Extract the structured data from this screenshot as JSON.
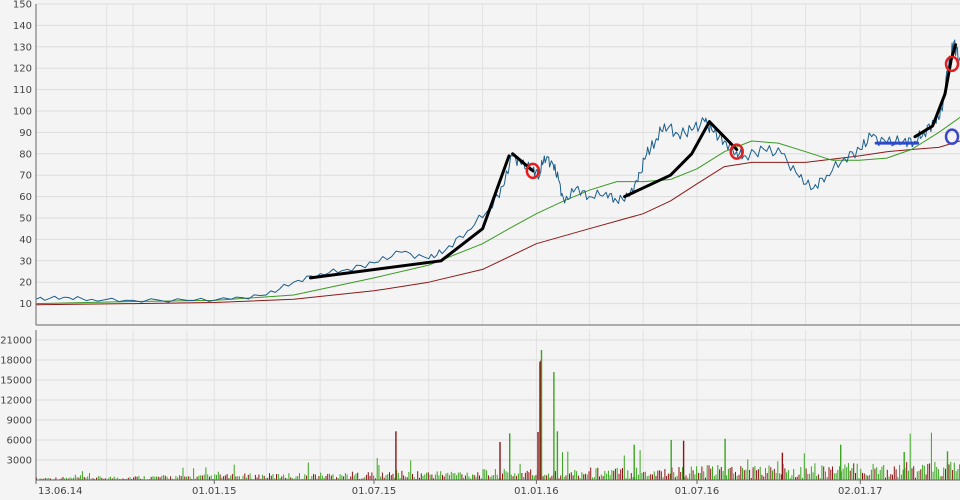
{
  "chart_data": [
    {
      "type": "line",
      "title": "",
      "xlabel": "",
      "ylabel": "",
      "ylim": [
        0,
        150
      ],
      "y_ticks": [
        "10",
        "20",
        "30",
        "40",
        "50",
        "60",
        "70",
        "80",
        "90",
        "100",
        "110",
        "120",
        "130",
        "140",
        "150"
      ],
      "x_tick_labels": [
        "13.06.14",
        "01.01.15",
        "01.07.15",
        "01.01.16",
        "01.07.16",
        "02.01.17"
      ],
      "x_tick_dates": [
        "2014-06-13",
        "2015-01-01",
        "2015-07-01",
        "2016-01-01",
        "2016-07-01",
        "2017-01-02"
      ],
      "x_range": [
        "2014-06-13",
        "2017-04-25"
      ],
      "grid": true,
      "series": [
        {
          "color": "#1b5e8c",
          "role": "price",
          "points": [
            [
              "2014-06-13",
              12
            ],
            [
              "2014-07-15",
              13
            ],
            [
              "2014-08-15",
              12
            ],
            [
              "2014-10-01",
              11.5
            ],
            [
              "2014-12-01",
              11.5
            ],
            [
              "2015-01-20",
              12
            ],
            [
              "2015-03-01",
              14
            ],
            [
              "2015-04-01",
              20
            ],
            [
              "2015-05-01",
              24
            ],
            [
              "2015-06-01",
              26
            ],
            [
              "2015-07-01",
              29
            ],
            [
              "2015-08-01",
              34
            ],
            [
              "2015-09-01",
              31
            ],
            [
              "2015-09-20",
              35
            ],
            [
              "2015-10-15",
              44
            ],
            [
              "2015-11-10",
              55
            ],
            [
              "2015-11-25",
              65
            ],
            [
              "2015-12-05",
              79
            ],
            [
              "2015-12-15",
              75
            ],
            [
              "2015-12-28",
              73
            ],
            [
              "2016-01-05",
              70
            ],
            [
              "2016-01-10",
              79
            ],
            [
              "2016-01-20",
              75
            ],
            [
              "2016-01-26",
              68
            ],
            [
              "2016-02-02",
              57
            ],
            [
              "2016-02-15",
              64
            ],
            [
              "2016-03-01",
              60
            ],
            [
              "2016-03-20",
              62
            ],
            [
              "2016-04-01",
              58
            ],
            [
              "2016-04-15",
              60
            ],
            [
              "2016-04-25",
              67
            ],
            [
              "2016-05-05",
              80
            ],
            [
              "2016-05-15",
              86
            ],
            [
              "2016-05-25",
              94
            ],
            [
              "2016-06-10",
              89
            ],
            [
              "2016-06-25",
              91
            ],
            [
              "2016-07-10",
              95
            ],
            [
              "2016-07-20",
              90
            ],
            [
              "2016-08-01",
              86
            ],
            [
              "2016-08-15",
              81
            ],
            [
              "2016-08-25",
              79
            ],
            [
              "2016-09-15",
              82
            ],
            [
              "2016-10-05",
              80
            ],
            [
              "2016-10-25",
              69
            ],
            [
              "2016-11-10",
              64
            ],
            [
              "2016-11-25",
              70
            ],
            [
              "2016-12-15",
              78
            ],
            [
              "2017-01-02",
              82
            ],
            [
              "2017-01-15",
              88
            ],
            [
              "2017-02-01",
              85
            ],
            [
              "2017-02-20",
              86
            ],
            [
              "2017-03-05",
              86
            ],
            [
              "2017-03-15",
              90
            ],
            [
              "2017-03-28",
              95
            ],
            [
              "2017-04-05",
              100
            ],
            [
              "2017-04-12",
              120
            ],
            [
              "2017-04-18",
              132
            ],
            [
              "2017-04-25",
              125
            ]
          ]
        },
        {
          "color": "#3a9a24",
          "role": "moving-average-short",
          "points": [
            [
              "2014-06-13",
              10
            ],
            [
              "2014-10-01",
              11
            ],
            [
              "2015-01-01",
              11.5
            ],
            [
              "2015-04-01",
              14
            ],
            [
              "2015-07-01",
              22
            ],
            [
              "2015-09-01",
              28
            ],
            [
              "2015-11-01",
              38
            ],
            [
              "2015-12-01",
              45
            ],
            [
              "2016-01-01",
              52
            ],
            [
              "2016-02-01",
              58
            ],
            [
              "2016-03-01",
              63
            ],
            [
              "2016-04-01",
              67
            ],
            [
              "2016-05-01",
              67
            ],
            [
              "2016-06-01",
              68
            ],
            [
              "2016-07-01",
              73
            ],
            [
              "2016-08-01",
              81
            ],
            [
              "2016-09-01",
              86
            ],
            [
              "2016-10-01",
              85
            ],
            [
              "2016-11-01",
              81
            ],
            [
              "2016-12-01",
              77
            ],
            [
              "2017-01-01",
              77
            ],
            [
              "2017-02-01",
              78
            ],
            [
              "2017-03-01",
              82
            ],
            [
              "2017-04-01",
              90
            ],
            [
              "2017-04-25",
              97
            ]
          ]
        },
        {
          "color": "#8b1a1a",
          "role": "moving-average-long",
          "points": [
            [
              "2014-06-13",
              9.5
            ],
            [
              "2014-10-01",
              10
            ],
            [
              "2015-01-01",
              10.5
            ],
            [
              "2015-04-01",
              12
            ],
            [
              "2015-07-01",
              16
            ],
            [
              "2015-09-01",
              20
            ],
            [
              "2015-11-01",
              26
            ],
            [
              "2016-01-01",
              38
            ],
            [
              "2016-03-01",
              45
            ],
            [
              "2016-05-01",
              52
            ],
            [
              "2016-06-01",
              58
            ],
            [
              "2016-07-01",
              66
            ],
            [
              "2016-08-01",
              74
            ],
            [
              "2016-09-01",
              76
            ],
            [
              "2016-10-01",
              76
            ],
            [
              "2016-11-01",
              76
            ],
            [
              "2017-01-01",
              79
            ],
            [
              "2017-02-01",
              81
            ],
            [
              "2017-03-01",
              82
            ],
            [
              "2017-04-01",
              83
            ],
            [
              "2017-04-25",
              86
            ]
          ]
        }
      ],
      "annotations": {
        "trend_lines": [
          {
            "color": "#000000",
            "points": [
              [
                "2015-04-20",
                22
              ],
              [
                "2015-09-15",
                30
              ],
              [
                "2015-11-01",
                45
              ],
              [
                "2015-12-01",
                79
              ]
            ]
          },
          {
            "color": "#000000",
            "points": [
              [
                "2015-12-05",
                80
              ],
              [
                "2015-12-28",
                72
              ]
            ]
          },
          {
            "color": "#000000",
            "points": [
              [
                "2016-04-10",
                60
              ],
              [
                "2016-06-01",
                70
              ],
              [
                "2016-06-25",
                80
              ],
              [
                "2016-07-15",
                95
              ]
            ]
          },
          {
            "color": "#000000",
            "points": [
              [
                "2016-07-15",
                95
              ],
              [
                "2016-08-15",
                82
              ]
            ]
          },
          {
            "color": "#000000",
            "points": [
              [
                "2017-03-05",
                88
              ],
              [
                "2017-03-25",
                93
              ],
              [
                "2017-04-08",
                108
              ],
              [
                "2017-04-15",
                124
              ],
              [
                "2017-04-20",
                131
              ]
            ]
          },
          {
            "color": "#2c49cc",
            "points": [
              [
                "2017-01-20",
                85
              ],
              [
                "2017-03-08",
                85
              ]
            ]
          }
        ],
        "circles": [
          {
            "color": "#e02020",
            "date": "2015-12-28",
            "value": 72
          },
          {
            "color": "#e02020",
            "date": "2016-08-15",
            "value": 81
          },
          {
            "color": "#e02020",
            "date": "2017-04-25",
            "value": 122
          },
          {
            "color": "#3a47c8",
            "date": "2017-04-25",
            "value": 88
          }
        ]
      }
    },
    {
      "type": "bar",
      "title": "",
      "ylim": [
        0,
        22500
      ],
      "y_ticks": [
        "3000",
        "6000",
        "9000",
        "12000",
        "15000",
        "18000",
        "21000"
      ],
      "colors": {
        "up": "#3aa51f",
        "down": "#8b1414"
      },
      "bars_note": "dense daily volume bars; notable peaks listed",
      "peaks": [
        [
          "2015-07-25",
          7300,
          "down"
        ],
        [
          "2015-11-20",
          5700,
          "down"
        ],
        [
          "2015-12-01",
          7000,
          "up"
        ],
        [
          "2016-01-02",
          7200,
          "down"
        ],
        [
          "2016-01-04",
          17700,
          "up"
        ],
        [
          "2016-01-05",
          17900,
          "down"
        ],
        [
          "2016-01-06",
          19500,
          "up"
        ],
        [
          "2016-01-20",
          16200,
          "up"
        ],
        [
          "2016-01-24",
          7300,
          "up"
        ],
        [
          "2016-04-20",
          5300,
          "up"
        ],
        [
          "2016-06-01",
          6000,
          "up"
        ],
        [
          "2016-06-15",
          5900,
          "down"
        ],
        [
          "2016-08-01",
          6200,
          "up"
        ],
        [
          "2016-10-05",
          4100,
          "down"
        ],
        [
          "2016-12-10",
          5300,
          "up"
        ],
        [
          "2017-02-20",
          4200,
          "up"
        ],
        [
          "2017-04-10",
          4300,
          "up"
        ]
      ]
    }
  ]
}
